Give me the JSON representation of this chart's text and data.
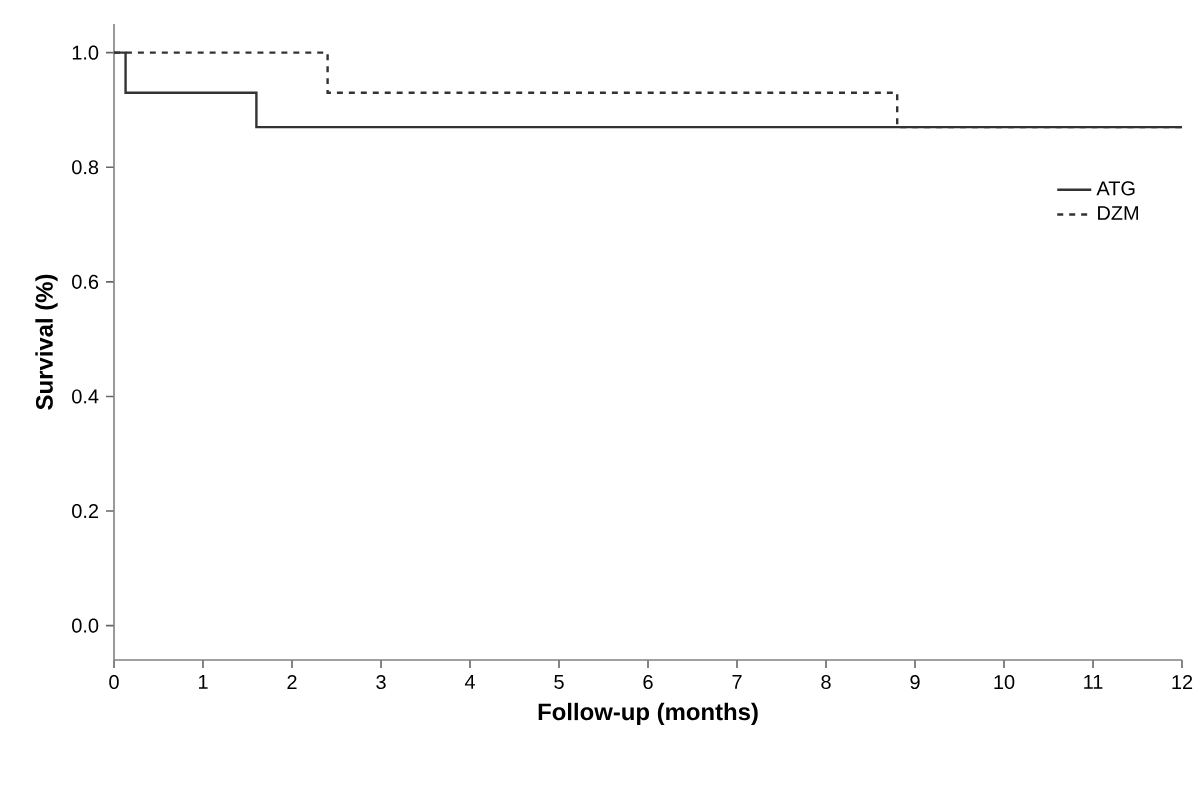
{
  "chart_data": {
    "type": "step",
    "xlabel": "Follow-up (months)",
    "ylabel": "Survival (%)",
    "xlim": [
      0,
      12
    ],
    "xticks": [
      0,
      1,
      2,
      3,
      4,
      5,
      6,
      7,
      8,
      9,
      10,
      11,
      12
    ],
    "ylim": [
      -0.06,
      1.05
    ],
    "yticks": [
      {
        "value": 0,
        "label": "0.0"
      },
      {
        "value": 0.2,
        "label": "0.2"
      },
      {
        "value": 0.4,
        "label": "0.4"
      },
      {
        "value": 0.6,
        "label": "0.6"
      },
      {
        "value": 0.8,
        "label": "0.8"
      },
      {
        "value": 1,
        "label": "1.0"
      }
    ],
    "legend": "right",
    "grid": false,
    "series": [
      {
        "name": "ATG",
        "color": "#333333",
        "line_style": "solid",
        "x": [
          0,
          0.13,
          1.6,
          12
        ],
        "values": [
          1,
          0.93,
          0.87,
          0.87
        ]
      },
      {
        "name": "DZM",
        "color": "#333333",
        "line_style": "dashed",
        "x": [
          0,
          2.4,
          8.8,
          12
        ],
        "values": [
          1,
          0.93,
          0.87,
          0.87
        ]
      }
    ]
  }
}
